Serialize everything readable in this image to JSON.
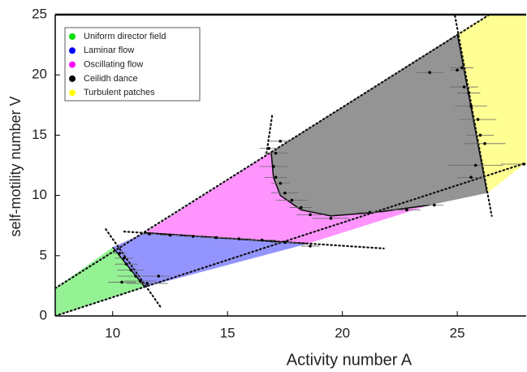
{
  "chart_data": {
    "type": "phase",
    "xlabel": "Activity number A",
    "ylabel": "self-motility number V",
    "xlim": [
      7.5,
      28
    ],
    "ylim": [
      0,
      25
    ],
    "xticks": [
      10,
      15,
      20,
      25
    ],
    "yticks": [
      0,
      5,
      10,
      15,
      20,
      25
    ],
    "series": [
      {
        "name": "Uniform director field",
        "color": "#00dd00",
        "x": [
          7.5,
          7.5,
          10.0,
          11.4
        ],
        "y": [
          0,
          2.3,
          5.7,
          2.4
        ]
      },
      {
        "name": "Laminar flow",
        "color": "#0000ff",
        "x": [
          10.0,
          11.4,
          18.5,
          11.4
        ],
        "y": [
          5.7,
          2.4,
          6.0,
          6.9
        ]
      },
      {
        "name": "Oscillating flow",
        "color": "#ff00ff",
        "x": [
          11.4,
          16.9,
          17.0,
          17.3,
          18.2,
          19.5,
          21.5,
          23.8,
          18.5
        ],
        "y": [
          6.9,
          13.6,
          11.5,
          10.0,
          8.8,
          8.3,
          8.6,
          9.2,
          6.0
        ]
      },
      {
        "name": "Ceilidh dance",
        "color": "#000000",
        "x": [
          16.9,
          25.0,
          26.3,
          23.8,
          21.5,
          19.5,
          18.2,
          17.3,
          17.0
        ],
        "y": [
          13.6,
          23.4,
          10.2,
          9.2,
          8.6,
          8.3,
          8.8,
          10.0,
          11.5
        ]
      },
      {
        "name": "Turbulent patches",
        "color": "#ffff00",
        "x": [
          25.0,
          26.4,
          28,
          28,
          26.3
        ],
        "y": [
          23.4,
          25,
          25,
          12.7,
          10.2
        ]
      }
    ],
    "boundaries": [
      {
        "x": [
          7.5,
          26.4
        ],
        "y": [
          2.3,
          25
        ]
      },
      {
        "x": [
          7.5,
          28
        ],
        "y": [
          0,
          12.7
        ]
      },
      {
        "x": [
          9.7,
          12.1
        ],
        "y": [
          7.2,
          0.7
        ]
      },
      {
        "x": [
          10.5,
          21.8
        ],
        "y": [
          7.0,
          5.6
        ]
      },
      {
        "x": [
          16.94,
          16.69
        ],
        "y": [
          16.6,
          13.4
        ]
      },
      {
        "x": [
          24.9,
          26.5
        ],
        "y": [
          24.9,
          8.3
        ]
      }
    ],
    "curves": [
      {
        "x": [
          16.9,
          17.0,
          17.3,
          18.2,
          19.5,
          21.5,
          23.8
        ],
        "y": [
          13.6,
          11.5,
          10.0,
          8.8,
          8.3,
          8.6,
          9.2
        ]
      },
      {
        "x": [
          25.0,
          26.3
        ],
        "y": [
          23.4,
          10.2
        ]
      },
      {
        "x": [
          11.4,
          18.5
        ],
        "y": [
          6.9,
          6.0
        ]
      },
      {
        "x": [
          10.0,
          11.4
        ],
        "y": [
          5.7,
          2.4
        ]
      }
    ],
    "points": {
      "x": [
        10.3,
        10.5,
        10.6,
        10.8,
        11.0,
        11.2,
        10.4,
        11.5,
        12.0,
        11.6,
        12.5,
        13.5,
        14.5,
        15.5,
        16.5,
        17.5,
        18.6,
        16.8,
        17.1,
        17.0,
        17.1,
        17.3,
        17.5,
        17.8,
        18.2,
        18.6,
        19.5,
        21.2,
        22.8,
        24.0,
        17.3,
        23.8,
        25.0,
        25.3,
        25.5,
        25.6,
        25.9,
        26.0,
        26.2,
        25.8,
        27.9,
        25.6,
        25.2
      ],
      "y": [
        5.2,
        4.8,
        4.3,
        3.8,
        3.3,
        2.9,
        2.8,
        2.7,
        3.3,
        6.8,
        6.7,
        6.6,
        6.5,
        6.4,
        6.3,
        6.1,
        5.8,
        13.9,
        13.5,
        12.4,
        11.5,
        11.0,
        10.2,
        9.6,
        9.0,
        8.4,
        8.1,
        8.6,
        8.8,
        9.2,
        14.5,
        20.2,
        20.4,
        19.0,
        18.5,
        17.4,
        16.3,
        15.0,
        14.3,
        12.5,
        12.6,
        11.5,
        20.6
      ],
      "xerr": [
        0.3,
        0.4,
        0.5,
        0.6,
        0.8,
        0.7,
        0.6,
        0.9,
        0.5,
        0.3,
        0.4,
        0.4,
        0.5,
        0.5,
        0.6,
        0.6,
        0.4,
        0.4,
        0.5,
        0.6,
        0.5,
        0.4,
        0.6,
        0.7,
        0.5,
        0.6,
        0.8,
        0.5,
        0.6,
        0.4,
        0.5,
        0.6,
        0.3,
        0.6,
        0.5,
        0.7,
        0.8,
        0.6,
        0.9,
        1.2,
        1.0,
        0.6,
        0.5
      ]
    }
  }
}
